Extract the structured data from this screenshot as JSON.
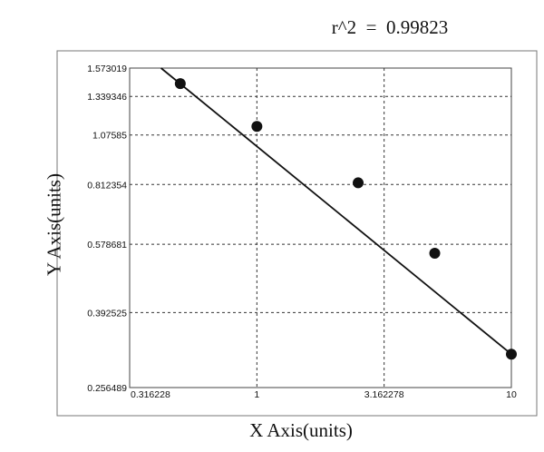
{
  "chart_data": {
    "type": "scatter",
    "annotation": "r^2  =  0.99823",
    "xlabel": "X Axis(units)",
    "ylabel": "Y Axis(units)",
    "x_scale": "log",
    "y_scale": "log",
    "xlim": [
      0.316228,
      10
    ],
    "ylim": [
      0.256489,
      1.573019
    ],
    "x_ticks": [
      "0.316228",
      "1",
      "3.162278",
      "10"
    ],
    "x_tick_values": [
      0.316228,
      1,
      3.162278,
      10
    ],
    "y_ticks": [
      "1.573019",
      "1.339346",
      "1.07585",
      "0.812354",
      "0.578681",
      "0.392525",
      "0.256489"
    ],
    "y_tick_values": [
      1.573019,
      1.339346,
      1.07585,
      0.812354,
      0.578681,
      0.392525,
      0.256489
    ],
    "grid": true,
    "points": [
      {
        "x": 0.5,
        "y": 1.44
      },
      {
        "x": 1.0,
        "y": 1.13
      },
      {
        "x": 2.5,
        "y": 0.82
      },
      {
        "x": 5.0,
        "y": 0.55
      },
      {
        "x": 10.0,
        "y": 0.31
      }
    ],
    "fit_line": {
      "x": [
        0.42,
        10.0
      ],
      "y": [
        1.573019,
        0.31
      ]
    },
    "colors": {
      "marker": "#111111",
      "line": "#111111",
      "grid": "#333333",
      "plot_bg": "#ffffff"
    }
  }
}
